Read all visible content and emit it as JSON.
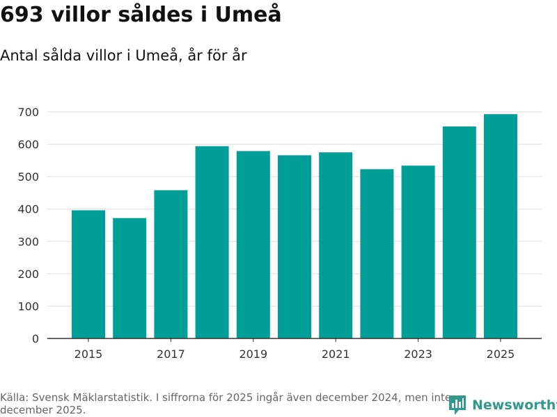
{
  "colors": {
    "bar": "#009e96",
    "grid": "#dddddd",
    "axis": "#333333",
    "brand": "#2f9a8b"
  },
  "header": {
    "title": "693 villor såldes i Umeå",
    "subtitle": "Antal sålda villor i Umeå, år för år"
  },
  "footer": {
    "source": "Källa: Svensk Mäklarstatistik. I siffrorna för 2025 ingår även december 2024, men inte december 2025.",
    "brand": "Newsworthy",
    "brand_icon": "newsworthy-logo-icon"
  },
  "chart_data": {
    "type": "bar",
    "title": "693 villor såldes i Umeå",
    "subtitle": "Antal sålda villor i Umeå, år för år",
    "xlabel": "",
    "ylabel": "",
    "categories": [
      "2015",
      "2016",
      "2017",
      "2018",
      "2019",
      "2020",
      "2021",
      "2022",
      "2023",
      "2024",
      "2025"
    ],
    "values": [
      396,
      372,
      458,
      594,
      579,
      566,
      575,
      523,
      534,
      655,
      693
    ],
    "x_tick_labels": [
      "2015",
      "2017",
      "2019",
      "2021",
      "2023",
      "2025"
    ],
    "y_ticks": [
      0,
      100,
      200,
      300,
      400,
      500,
      600,
      700
    ],
    "ylim": [
      0,
      700
    ],
    "grid": true
  }
}
